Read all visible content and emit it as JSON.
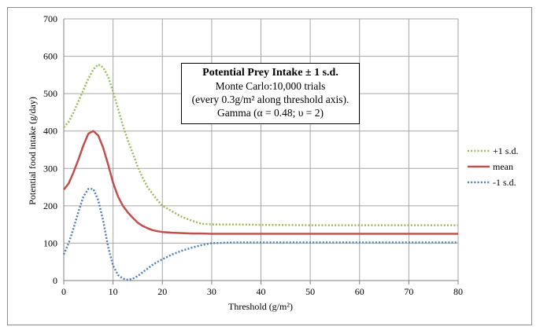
{
  "chart_data": {
    "type": "line",
    "xlabel": "Threshold (g/m²)",
    "ylabel": "Potential food intake (g/day)",
    "xlim": [
      0,
      80
    ],
    "ylim": [
      0,
      700
    ],
    "xticks": [
      "0",
      "10",
      "20",
      "30",
      "40",
      "50",
      "60",
      "70",
      "80"
    ],
    "yticks": [
      "0",
      "100",
      "200",
      "300",
      "400",
      "500",
      "600",
      "700"
    ],
    "grid": true,
    "legend_position": "right",
    "annotation": {
      "title": "Potential Prey Intake ± 1 s.d.",
      "line1": "Monte Carlo:10,000  trials",
      "line2": "(every 0.3g/m² along threshold axis).",
      "line3": "Gamma (α = 0.48; υ = 2)"
    },
    "series": [
      {
        "name": "+1 s.d.",
        "color": "#9bbb59",
        "style": "dotted",
        "x": [
          0,
          1,
          2,
          3,
          4,
          5,
          6,
          7,
          8,
          9,
          10,
          11,
          12,
          13,
          14,
          15,
          16,
          17,
          18,
          19,
          20,
          22,
          24,
          26,
          28,
          30,
          35,
          40,
          50,
          60,
          70,
          80
        ],
        "y": [
          410,
          425,
          450,
          480,
          510,
          540,
          565,
          578,
          570,
          545,
          505,
          460,
          415,
          375,
          340,
          305,
          275,
          250,
          232,
          215,
          200,
          185,
          170,
          160,
          152,
          150,
          150,
          149,
          148,
          148,
          148,
          148
        ]
      },
      {
        "name": "mean",
        "color": "#c0504d",
        "style": "solid",
        "x": [
          0,
          1,
          2,
          3,
          4,
          5,
          6,
          7,
          8,
          9,
          10,
          11,
          12,
          13,
          14,
          15,
          16,
          17,
          18,
          19,
          20,
          22,
          24,
          26,
          28,
          30,
          35,
          40,
          50,
          60,
          70,
          80
        ],
        "y": [
          243,
          260,
          290,
          325,
          362,
          393,
          400,
          388,
          355,
          310,
          262,
          225,
          200,
          182,
          168,
          155,
          146,
          140,
          135,
          132,
          130,
          128,
          127,
          126,
          126,
          125,
          125,
          125,
          125,
          125,
          125,
          125
        ]
      },
      {
        "name": "-1 s.d.",
        "color": "#4f81bd",
        "style": "dotted",
        "x": [
          0,
          1,
          2,
          3,
          4,
          5,
          6,
          7,
          8,
          9,
          10,
          11,
          12,
          13,
          14,
          15,
          16,
          17,
          18,
          19,
          20,
          22,
          24,
          26,
          28,
          30,
          35,
          40,
          50,
          60,
          70,
          80
        ],
        "y": [
          70,
          100,
          140,
          185,
          225,
          245,
          245,
          215,
          160,
          90,
          40,
          15,
          5,
          2,
          5,
          12,
          22,
          32,
          42,
          50,
          57,
          70,
          80,
          88,
          95,
          100,
          102,
          102,
          102,
          102,
          102,
          102
        ]
      }
    ]
  }
}
